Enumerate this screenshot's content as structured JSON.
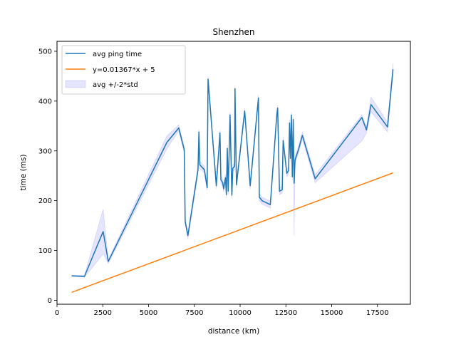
{
  "chart_data": {
    "type": "line",
    "title": "Shenzhen",
    "xlabel": "distance (km)",
    "ylabel": "time (ms)",
    "xlim": [
      0,
      19300
    ],
    "ylim": [
      -8,
      520
    ],
    "xticks": [
      0,
      2500,
      5000,
      7500,
      10000,
      12500,
      15000,
      17500
    ],
    "yticks": [
      0,
      100,
      200,
      300,
      400,
      500
    ],
    "grid": false,
    "legend_position": "top-left",
    "colors": {
      "avg": "#1f77b4",
      "fit": "#ff7f0e",
      "band": "#0000ff"
    },
    "series": [
      {
        "name": "avg ping time",
        "kind": "line",
        "x": [
          800,
          1500,
          2520,
          2800,
          6000,
          6650,
          6950,
          7000,
          7150,
          7700,
          7750,
          7800,
          8050,
          8200,
          8250,
          8700,
          8900,
          8950,
          9050,
          9100,
          9200,
          9250,
          9300,
          9350,
          9450,
          9550,
          9600,
          9700,
          9720,
          9800,
          10250,
          10550,
          11000,
          11050,
          11200,
          11650,
          12000,
          12050,
          12150,
          12300,
          12350,
          12550,
          12650,
          12700,
          12750,
          12800,
          12850,
          12900,
          12950,
          13000,
          13200,
          13400,
          14100,
          16650,
          16900,
          17150,
          18050,
          18350
        ],
        "y": [
          49,
          48,
          138,
          78,
          317,
          346,
          302,
          158,
          130,
          262,
          338,
          272,
          262,
          226,
          444,
          230,
          336,
          242,
          236,
          224,
          246,
          212,
          305,
          219,
          372,
          211,
          265,
          269,
          425,
          232,
          380,
          230,
          406,
          207,
          200,
          192,
          371,
          386,
          219,
          222,
          321,
          255,
          261,
          356,
          285,
          372,
          248,
          363,
          235,
          282,
          304,
          331,
          244,
          367,
          342,
          393,
          348,
          464
        ]
      },
      {
        "name": "y=0.01367*x + 5",
        "kind": "line",
        "x": [
          800,
          18350
        ],
        "y": [
          15.9,
          255.8
        ]
      },
      {
        "name": "avg +/-2*std",
        "kind": "band",
        "x": [
          800,
          1500,
          2520,
          2800,
          6000,
          6650,
          6950,
          7000,
          7150,
          7700,
          7750,
          7800,
          8050,
          8200,
          8250,
          8700,
          8900,
          8950,
          9050,
          9100,
          9200,
          9250,
          9300,
          9350,
          9450,
          9550,
          9600,
          9700,
          9720,
          9800,
          10250,
          10550,
          11000,
          11050,
          11200,
          11650,
          12000,
          12050,
          12150,
          12300,
          12350,
          12550,
          12650,
          12700,
          12750,
          12800,
          12850,
          12900,
          12950,
          13000,
          13200,
          13400,
          14100,
          16650,
          16900,
          17150,
          18050,
          18350
        ],
        "upper": [
          50,
          50,
          183,
          82,
          330,
          352,
          308,
          165,
          137,
          270,
          344,
          279,
          269,
          232,
          450,
          236,
          342,
          249,
          243,
          231,
          253,
          219,
          312,
          226,
          378,
          218,
          272,
          276,
          431,
          239,
          386,
          237,
          412,
          214,
          207,
          199,
          378,
          392,
          226,
          229,
          328,
          262,
          268,
          362,
          292,
          378,
          255,
          369,
          242,
          289,
          311,
          338,
          252,
          372,
          348,
          408,
          358,
          476
        ],
        "lower": [
          48,
          46,
          93,
          74,
          304,
          340,
          296,
          151,
          123,
          254,
          332,
          265,
          255,
          220,
          438,
          224,
          330,
          235,
          229,
          217,
          239,
          205,
          298,
          212,
          366,
          204,
          258,
          262,
          419,
          225,
          374,
          223,
          400,
          200,
          193,
          185,
          364,
          380,
          212,
          215,
          314,
          248,
          254,
          350,
          278,
          366,
          241,
          357,
          130,
          275,
          297,
          324,
          236,
          320,
          336,
          378,
          338,
          452
        ]
      }
    ]
  }
}
